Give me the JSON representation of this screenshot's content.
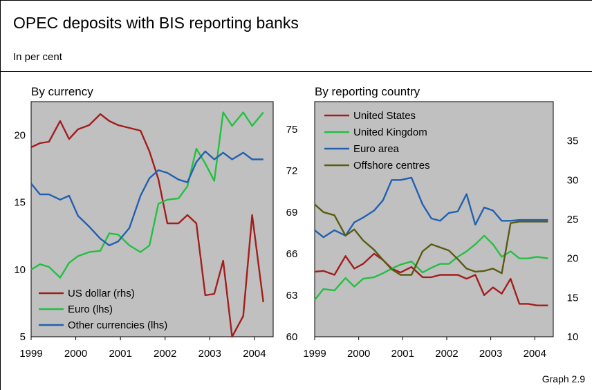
{
  "header": {
    "title": "OPEC deposits with BIS reporting banks",
    "subtitle": "In per cent"
  },
  "footer": {
    "label": "Graph 2.9"
  },
  "colors": {
    "plot_bg": "#c0c0c0",
    "us_dollar": "#a31d1d",
    "euro": "#22c041",
    "other": "#2160b0",
    "united_states": "#a31d1d",
    "united_kingdom": "#22c041",
    "euro_area": "#2160b0",
    "offshore": "#5a5a12"
  },
  "chart_data": [
    {
      "type": "line",
      "title": "By currency",
      "x_tick_labels": [
        "1999",
        "2000",
        "2001",
        "2002",
        "2003",
        "2004"
      ],
      "xlim": [
        1999.0,
        2004.42
      ],
      "left_axis": {
        "ylim": [
          5,
          22.5
        ],
        "ticks": [
          5,
          10,
          15,
          20
        ]
      },
      "right_axis": {
        "ylim": [
          60,
          77
        ],
        "ticks": [
          60,
          63,
          66,
          69,
          72,
          75
        ]
      },
      "legend": {
        "position": "bottom-left"
      },
      "series": [
        {
          "name": "US dollar (rhs)",
          "axis": "right",
          "color_key": "us_dollar",
          "x": [
            1999.0,
            1999.2,
            1999.4,
            1999.65,
            1999.85,
            2000.05,
            2000.3,
            2000.55,
            2000.75,
            2000.95,
            2001.2,
            2001.45,
            2001.65,
            2001.85,
            2002.05,
            2002.3,
            2002.5,
            2002.7,
            2002.9,
            2003.1,
            2003.3,
            2003.5,
            2003.75,
            2003.95,
            2004.2
          ],
          "y": [
            73.7,
            74.0,
            74.1,
            75.6,
            74.3,
            75.0,
            75.3,
            76.1,
            75.6,
            75.3,
            75.1,
            74.9,
            73.4,
            71.4,
            68.2,
            68.2,
            68.8,
            68.2,
            63.0,
            63.1,
            65.5,
            60.0,
            61.5,
            68.8,
            62.5
          ]
        },
        {
          "name": "Euro (lhs)",
          "axis": "left",
          "color_key": "euro",
          "x": [
            1999.0,
            1999.2,
            1999.4,
            1999.65,
            1999.85,
            2000.05,
            2000.3,
            2000.55,
            2000.75,
            2000.95,
            2001.2,
            2001.45,
            2001.65,
            2001.85,
            2002.05,
            2002.3,
            2002.5,
            2002.7,
            2002.9,
            2003.1,
            2003.3,
            2003.5,
            2003.75,
            2003.95,
            2004.2
          ],
          "y": [
            10.0,
            10.4,
            10.2,
            9.4,
            10.5,
            11.0,
            11.3,
            11.4,
            12.7,
            12.6,
            11.8,
            11.3,
            11.8,
            14.9,
            15.2,
            15.3,
            16.2,
            19.0,
            17.9,
            16.6,
            21.7,
            20.7,
            21.7,
            20.7,
            21.7
          ]
        },
        {
          "name": "Other currencies (lhs)",
          "axis": "left",
          "color_key": "other",
          "x": [
            1999.0,
            1999.2,
            1999.4,
            1999.65,
            1999.85,
            2000.05,
            2000.3,
            2000.55,
            2000.75,
            2000.95,
            2001.2,
            2001.45,
            2001.65,
            2001.85,
            2002.05,
            2002.3,
            2002.5,
            2002.7,
            2002.9,
            2003.1,
            2003.3,
            2003.5,
            2003.75,
            2003.95,
            2004.2
          ],
          "y": [
            16.4,
            15.6,
            15.6,
            15.2,
            15.5,
            14.0,
            13.2,
            12.3,
            11.8,
            12.1,
            13.1,
            15.5,
            16.8,
            17.4,
            17.2,
            16.7,
            16.5,
            18.0,
            18.8,
            18.2,
            18.7,
            18.2,
            18.7,
            18.2,
            18.2
          ]
        }
      ]
    },
    {
      "type": "line",
      "title": "By reporting country",
      "x_tick_labels": [
        "1999",
        "2000",
        "2001",
        "2002",
        "2003",
        "2004"
      ],
      "xlim": [
        1999.0,
        2004.42
      ],
      "right_axis": {
        "ylim": [
          10,
          40
        ],
        "ticks": [
          10,
          15,
          20,
          25,
          30,
          35
        ]
      },
      "legend": {
        "position": "top-left"
      },
      "series": [
        {
          "name": "United States",
          "axis": "right",
          "color_key": "united_states",
          "x": [
            1999.0,
            1999.2,
            1999.45,
            1999.7,
            1999.9,
            2000.1,
            2000.35,
            2000.55,
            2000.75,
            2000.95,
            2001.2,
            2001.45,
            2001.65,
            2001.85,
            2002.05,
            2002.25,
            2002.45,
            2002.65,
            2002.85,
            2003.05,
            2003.25,
            2003.45,
            2003.65,
            2003.85,
            2004.05,
            2004.3
          ],
          "y": [
            18.3,
            18.4,
            17.9,
            20.3,
            18.7,
            19.3,
            20.6,
            19.8,
            18.7,
            18.2,
            18.9,
            17.6,
            17.6,
            17.9,
            17.9,
            17.9,
            17.4,
            17.9,
            15.3,
            16.3,
            15.5,
            17.4,
            14.2,
            14.2,
            14.0,
            14.0
          ]
        },
        {
          "name": "United Kingdom",
          "axis": "right",
          "color_key": "united_kingdom",
          "x": [
            1999.0,
            1999.2,
            1999.45,
            1999.7,
            1999.9,
            2000.1,
            2000.35,
            2000.55,
            2000.75,
            2000.95,
            2001.2,
            2001.45,
            2001.65,
            2001.85,
            2002.05,
            2002.25,
            2002.45,
            2002.65,
            2002.85,
            2003.05,
            2003.25,
            2003.45,
            2003.65,
            2003.85,
            2004.05,
            2004.3
          ],
          "y": [
            14.7,
            16.1,
            15.9,
            17.5,
            16.4,
            17.4,
            17.6,
            18.1,
            18.7,
            19.2,
            19.6,
            18.2,
            18.8,
            19.3,
            19.3,
            20.2,
            20.9,
            21.8,
            22.9,
            21.8,
            20.2,
            20.9,
            20.0,
            20.0,
            20.2,
            20.0
          ]
        },
        {
          "name": "Euro area",
          "axis": "right",
          "color_key": "euro_area",
          "x": [
            1999.0,
            1999.2,
            1999.45,
            1999.7,
            1999.9,
            2000.1,
            2000.35,
            2000.55,
            2000.75,
            2000.95,
            2001.2,
            2001.45,
            2001.65,
            2001.85,
            2002.05,
            2002.25,
            2002.45,
            2002.65,
            2002.85,
            2003.05,
            2003.25,
            2003.45,
            2003.65,
            2003.85,
            2004.05,
            2004.3
          ],
          "y": [
            23.6,
            22.7,
            23.6,
            22.9,
            24.6,
            25.2,
            26.1,
            27.4,
            30.0,
            30.0,
            30.3,
            26.9,
            25.1,
            24.8,
            25.8,
            26.0,
            28.2,
            24.3,
            26.5,
            26.1,
            24.8,
            24.8,
            24.9,
            24.9,
            24.9,
            24.9
          ]
        },
        {
          "name": "Offshore centres",
          "axis": "right",
          "color_key": "offshore",
          "x": [
            1999.0,
            1999.2,
            1999.45,
            1999.7,
            1999.9,
            2000.1,
            2000.35,
            2000.55,
            2000.75,
            2000.95,
            2001.2,
            2001.45,
            2001.65,
            2001.85,
            2002.05,
            2002.25,
            2002.45,
            2002.65,
            2002.85,
            2003.05,
            2003.25,
            2003.45,
            2003.65,
            2003.85,
            2004.05,
            2004.3
          ],
          "y": [
            26.9,
            25.9,
            25.5,
            22.9,
            23.7,
            22.3,
            21.1,
            19.8,
            18.6,
            17.9,
            17.9,
            20.9,
            21.8,
            21.4,
            21.0,
            19.9,
            18.7,
            18.3,
            18.4,
            18.7,
            18.1,
            24.5,
            24.7,
            24.7,
            24.7,
            24.7
          ]
        }
      ]
    }
  ]
}
